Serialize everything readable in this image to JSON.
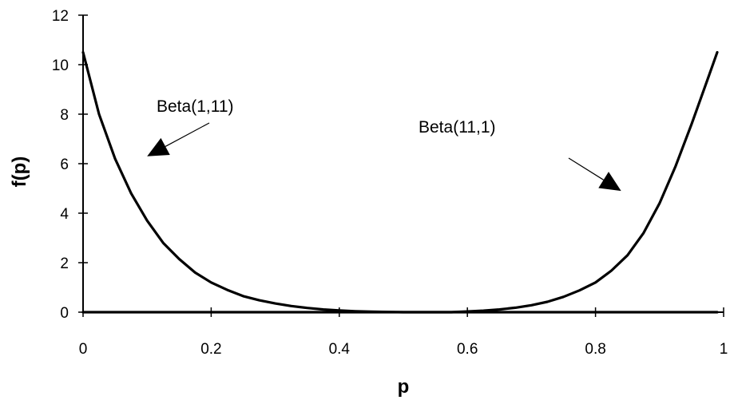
{
  "chart_data": {
    "type": "line",
    "xlabel": "p",
    "ylabel": "f(p)",
    "xlim": [
      0,
      1
    ],
    "ylim": [
      0,
      12
    ],
    "x_ticks": [
      0,
      0.2,
      0.4,
      0.6,
      0.8,
      1
    ],
    "x_tick_labels": [
      "0",
      "0.2",
      "0.4",
      "0.6",
      "0.8",
      "1"
    ],
    "y_ticks": [
      0,
      2,
      4,
      6,
      8,
      10,
      12
    ],
    "y_tick_labels": [
      "0",
      "2",
      "4",
      "6",
      "8",
      "10",
      "12"
    ],
    "grid": false,
    "legend": "none",
    "x": [
      0.0,
      0.025,
      0.05,
      0.075,
      0.1,
      0.125,
      0.15,
      0.175,
      0.2,
      0.225,
      0.25,
      0.275,
      0.3,
      0.325,
      0.35,
      0.375,
      0.4,
      0.425,
      0.45,
      0.475,
      0.5,
      0.525,
      0.55,
      0.575,
      0.6,
      0.625,
      0.65,
      0.675,
      0.7,
      0.725,
      0.75,
      0.775,
      0.8,
      0.825,
      0.85,
      0.875,
      0.9,
      0.925,
      0.95,
      0.975,
      0.99
    ],
    "series": [
      {
        "values": [
          10.5,
          8.0,
          6.2,
          4.8,
          3.7,
          2.8,
          2.15,
          1.6,
          1.2,
          0.9,
          0.65,
          0.48,
          0.35,
          0.25,
          0.17,
          0.11,
          0.07,
          0.04,
          0.02,
          0.01,
          0.0,
          0.0,
          0.0,
          0.0,
          0.0,
          0.0,
          0.0,
          0.0,
          0.0,
          0.0,
          0.0,
          0.0,
          0.0,
          0.0,
          0.0,
          0.0,
          0.0,
          0.0,
          0.0,
          0.0,
          0.0
        ]
      },
      {
        "values": [
          0.0,
          0.0,
          0.0,
          0.0,
          0.0,
          0.0,
          0.0,
          0.0,
          0.0,
          0.0,
          0.0,
          0.0,
          0.0,
          0.0,
          0.0,
          0.0,
          0.0,
          0.0,
          0.0,
          0.0,
          0.0,
          0.0,
          0.0,
          0.0,
          0.03,
          0.06,
          0.11,
          0.18,
          0.28,
          0.42,
          0.62,
          0.88,
          1.2,
          1.68,
          2.3,
          3.2,
          4.4,
          5.9,
          7.6,
          9.4,
          10.5
        ]
      }
    ],
    "annotations": [
      {
        "text": "Beta(1,11)",
        "series_index": 0,
        "arrow_to": [
          0.1,
          6.3
        ]
      },
      {
        "text": "Beta(11,1)",
        "series_index": 1,
        "arrow_to": [
          0.84,
          4.9
        ]
      }
    ]
  }
}
